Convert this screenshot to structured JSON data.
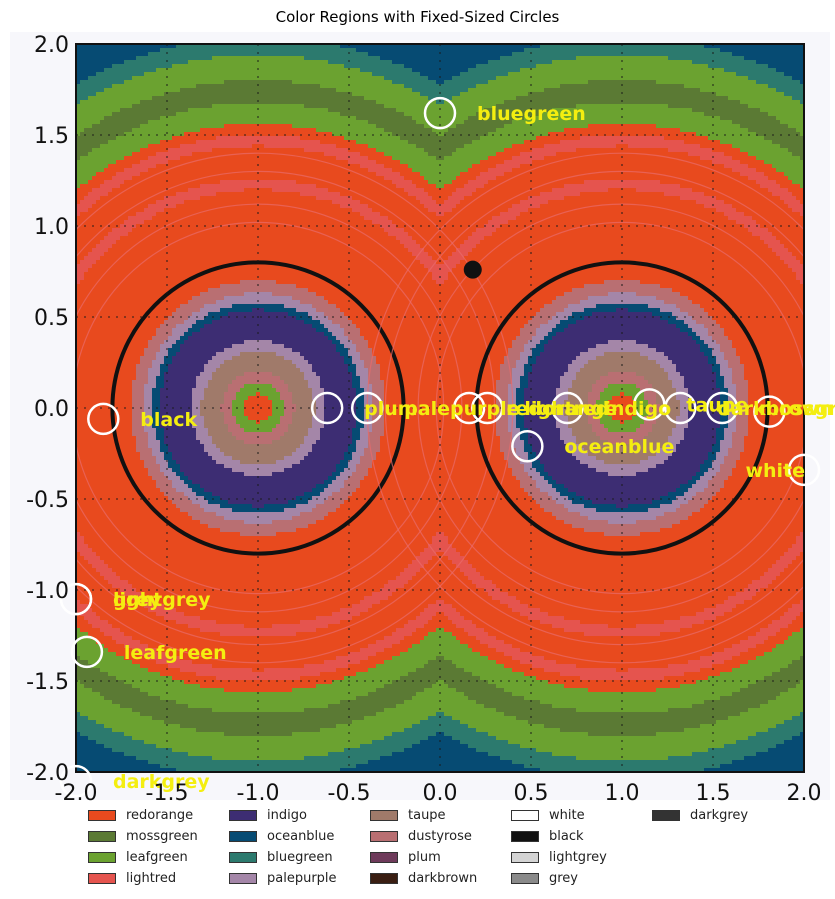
{
  "chart_data": {
    "type": "heatmap",
    "title": "Color Regions with Fixed-Sized Circles",
    "xlim": [
      -2.0,
      2.0
    ],
    "ylim": [
      -2.0,
      2.0
    ],
    "x_ticks": [
      "-2.0",
      "-1.5",
      "-1.0",
      "-0.5",
      "0.0",
      "0.5",
      "1.0",
      "1.5",
      "2.0"
    ],
    "y_ticks": [
      "2.0",
      "1.5",
      "1.0",
      "0.5",
      "0.0",
      "-0.5",
      "-1.0",
      "-1.5",
      "-2.0"
    ],
    "grid": true,
    "region_centers": [
      [
        -1.0,
        0.0
      ],
      [
        1.0,
        0.0
      ]
    ],
    "black_ring_radius": 0.8,
    "black_dot": [
      0.18,
      0.76
    ],
    "circles": [
      {
        "label": "bluegreen",
        "x": 0.0,
        "y": 1.62
      },
      {
        "label": "black",
        "x": -1.85,
        "y": -0.06
      },
      {
        "label": "plum",
        "x": -0.62,
        "y": 0.0
      },
      {
        "label": "palepurple",
        "x": -0.4,
        "y": 0.0
      },
      {
        "label": "redorange",
        "x": 0.16,
        "y": 0.0
      },
      {
        "label": "lightred",
        "x": 0.26,
        "y": 0.0
      },
      {
        "label": "indigo",
        "x": 0.7,
        "y": 0.0
      },
      {
        "label": "taupe",
        "x": 1.15,
        "y": 0.02
      },
      {
        "label": "darkbrown",
        "x": 1.32,
        "y": 0.0
      },
      {
        "label": "mossgreen",
        "x": 1.55,
        "y": 0.0
      },
      {
        "label": "",
        "x": 1.81,
        "y": -0.02
      },
      {
        "label": "oceanblue",
        "x": 0.48,
        "y": -0.21
      },
      {
        "label": "white",
        "x": 2.0,
        "y": -0.34
      },
      {
        "label": "lightgrey",
        "x": -2.0,
        "y": -1.05
      },
      {
        "label": "grey",
        "x": -2.0,
        "y": -1.05
      },
      {
        "label": "leafgreen",
        "x": -1.94,
        "y": -1.34
      },
      {
        "label": "darkgrey",
        "x": -2.0,
        "y": -2.05
      }
    ],
    "legend": [
      {
        "name": "redorange",
        "color": "#e84a1e"
      },
      {
        "name": "mossgreen",
        "color": "#5b7a34"
      },
      {
        "name": "leafgreen",
        "color": "#6ba230"
      },
      {
        "name": "lightred",
        "color": "#e5544e"
      },
      {
        "name": "indigo",
        "color": "#3d2d73"
      },
      {
        "name": "oceanblue",
        "color": "#064b73"
      },
      {
        "name": "bluegreen",
        "color": "#2c7a6e"
      },
      {
        "name": "palepurple",
        "color": "#a486a8"
      },
      {
        "name": "taupe",
        "color": "#a07a6a"
      },
      {
        "name": "dustyrose",
        "color": "#b96f72"
      },
      {
        "name": "plum",
        "color": "#6e3a5a"
      },
      {
        "name": "darkbrown",
        "color": "#3a1e12"
      },
      {
        "name": "white",
        "color": "#ffffff"
      },
      {
        "name": "black",
        "color": "#111111"
      },
      {
        "name": "lightgrey",
        "color": "#d4d4d4"
      },
      {
        "name": "grey",
        "color": "#8a8a8a"
      },
      {
        "name": "darkgrey",
        "color": "#333333"
      }
    ],
    "label_color": "#f4ee10"
  }
}
